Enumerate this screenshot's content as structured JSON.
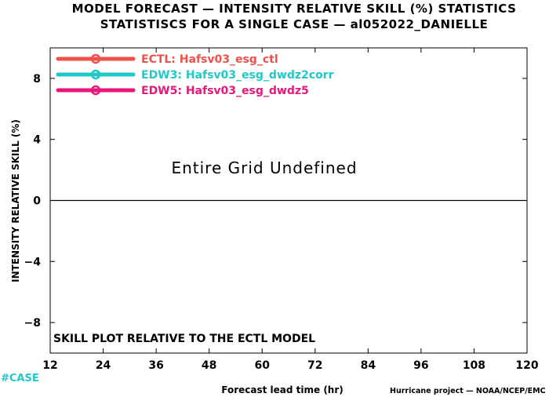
{
  "chart_data": {
    "type": "line",
    "title": "MODEL FORECAST — INTENSITY RELATIVE SKILL (%) STATISTICS",
    "subtitle": "STATISTISCS FOR A SINGLE CASE — al052022_DANIELLE",
    "xlabel": "Forecast lead time (hr)",
    "ylabel": "INTENSITY RELATIVE SKILL (%)",
    "xlim": [
      12,
      120
    ],
    "ylim": [
      -10,
      10
    ],
    "x_ticks": [
      "12",
      "24",
      "36",
      "48",
      "60",
      "72",
      "84",
      "96",
      "108",
      "120"
    ],
    "y_ticks": [
      "8",
      "4",
      "0",
      "−4",
      "−8"
    ],
    "y_tick_values": [
      8,
      4,
      0,
      -4,
      -8
    ],
    "x_tick_values": [
      12,
      24,
      36,
      48,
      60,
      72,
      84,
      96,
      108,
      120
    ],
    "zero_line": 0,
    "grid": false,
    "legend_position": "top-left",
    "series": [
      {
        "name": "ECTL: Hafsv03_esg_ctl",
        "color": "#f0504a",
        "values": []
      },
      {
        "name": "EDW3: Hafsv03_esg_dwdz2corr",
        "color": "#22c8c8",
        "values": []
      },
      {
        "name": "EDW5: Hafsv03_esg_dwdz5",
        "color": "#e8177a",
        "values": []
      }
    ],
    "annotations": {
      "undefined_text": "Entire Grid Undefined",
      "skill_note": "SKILL PLOT RELATIVE TO THE ECTL MODEL"
    }
  },
  "footer": {
    "case_label": "#CASE",
    "case_color": "#22c8c8",
    "credit": "Hurricane project — NOAA/NCEP/EMC"
  }
}
